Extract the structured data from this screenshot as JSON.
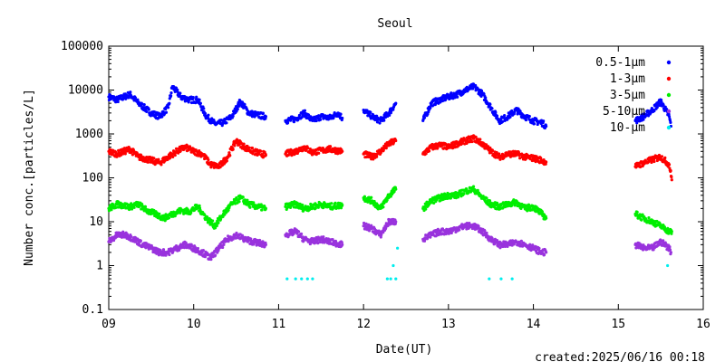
{
  "chart_data": {
    "type": "scatter",
    "title": "Seoul",
    "xlabel": "Date(UT)",
    "ylabel": "Number conc.[particles/L]",
    "yscale": "log",
    "ylim": [
      0.1,
      100000
    ],
    "xlim": [
      9,
      16
    ],
    "x_ticks": [
      "09",
      "10",
      "11",
      "12",
      "13",
      "14",
      "15",
      "16"
    ],
    "y_ticks": [
      "0.1",
      "1",
      "10",
      "100",
      "1000",
      "10000",
      "100000"
    ],
    "grid": false,
    "legend_position": "top-right",
    "footer": "created:2025/06/16 00:18",
    "series": [
      {
        "name": "0.5-1μm",
        "color": "#0000ff",
        "segments": [
          {
            "x": [
              9.0,
              9.1,
              9.25,
              9.35,
              9.5,
              9.6,
              9.7,
              9.75,
              9.85,
              9.95,
              10.05,
              10.15,
              10.25,
              10.35,
              10.45,
              10.55,
              10.65,
              10.75,
              10.85
            ],
            "y": [
              7000,
              6000,
              8000,
              5000,
              3000,
              2500,
              4000,
              12000,
              7000,
              6000,
              6000,
              2500,
              1700,
              1800,
              2500,
              5500,
              3000,
              2700,
              2500
            ]
          },
          {
            "x": [
              11.08,
              11.2,
              11.3,
              11.4,
              11.5,
              11.6,
              11.7,
              11.75
            ],
            "y": [
              2000,
              2200,
              3000,
              2000,
              2500,
              2300,
              3000,
              2300
            ]
          },
          {
            "x": [
              12.0,
              12.1,
              12.2,
              12.3,
              12.38
            ],
            "y": [
              3500,
              2500,
              2000,
              3000,
              5000
            ]
          },
          {
            "x": [
              12.7,
              12.8,
              12.9,
              13.0,
              13.1,
              13.2,
              13.3,
              13.4,
              13.5,
              13.6,
              13.7,
              13.8,
              13.9,
              14.0,
              14.1,
              14.15
            ],
            "y": [
              2000,
              5000,
              6000,
              7000,
              8000,
              10000,
              12000,
              8000,
              4000,
              2000,
              2500,
              3500,
              2500,
              2000,
              1800,
              1500
            ]
          },
          {
            "x": [
              15.2,
              15.3,
              15.4,
              15.5,
              15.6,
              15.62
            ],
            "y": [
              2000,
              2500,
              3500,
              5500,
              2500,
              1500
            ]
          }
        ]
      },
      {
        "name": "1-3μm",
        "color": "#ff0000",
        "segments": [
          {
            "x": [
              9.0,
              9.1,
              9.25,
              9.35,
              9.5,
              9.6,
              9.7,
              9.8,
              9.9,
              10.0,
              10.1,
              10.2,
              10.3,
              10.4,
              10.5,
              10.6,
              10.7,
              10.85
            ],
            "y": [
              400,
              350,
              450,
              300,
              250,
              220,
              300,
              400,
              500,
              400,
              350,
              200,
              180,
              300,
              700,
              500,
              400,
              330
            ]
          },
          {
            "x": [
              11.08,
              11.2,
              11.3,
              11.4,
              11.5,
              11.6,
              11.75
            ],
            "y": [
              350,
              400,
              500,
              380,
              420,
              450,
              400
            ]
          },
          {
            "x": [
              12.0,
              12.1,
              12.2,
              12.3,
              12.38
            ],
            "y": [
              350,
              300,
              400,
              600,
              700
            ]
          },
          {
            "x": [
              12.7,
              12.8,
              12.9,
              13.0,
              13.1,
              13.2,
              13.3,
              13.4,
              13.5,
              13.6,
              13.7,
              13.8,
              13.9,
              14.0,
              14.1,
              14.15
            ],
            "y": [
              350,
              500,
              550,
              500,
              600,
              700,
              800,
              600,
              400,
              300,
              350,
              350,
              300,
              280,
              250,
              230
            ]
          },
          {
            "x": [
              15.2,
              15.3,
              15.4,
              15.5,
              15.6,
              15.63
            ],
            "y": [
              180,
              220,
              260,
              300,
              200,
              90
            ]
          }
        ]
      },
      {
        "name": "3-5μm",
        "color": "#00ee00",
        "segments": [
          {
            "x": [
              9.0,
              9.1,
              9.25,
              9.35,
              9.45,
              9.55,
              9.65,
              9.75,
              9.85,
              9.95,
              10.05,
              10.15,
              10.25,
              10.35,
              10.45,
              10.55,
              10.65,
              10.75,
              10.85
            ],
            "y": [
              20,
              25,
              22,
              25,
              18,
              15,
              12,
              15,
              18,
              17,
              22,
              12,
              8,
              15,
              25,
              35,
              25,
              22,
              20
            ]
          },
          {
            "x": [
              11.08,
              11.2,
              11.3,
              11.4,
              11.5,
              11.6,
              11.75
            ],
            "y": [
              22,
              25,
              20,
              22,
              25,
              22,
              24
            ]
          },
          {
            "x": [
              12.0,
              12.1,
              12.2,
              12.3,
              12.38
            ],
            "y": [
              35,
              30,
              20,
              40,
              55
            ]
          },
          {
            "x": [
              12.7,
              12.8,
              12.9,
              13.0,
              13.1,
              13.2,
              13.3,
              13.4,
              13.5,
              13.6,
              13.7,
              13.8,
              13.9,
              14.0,
              14.1,
              14.15
            ],
            "y": [
              20,
              30,
              35,
              40,
              40,
              50,
              55,
              35,
              25,
              22,
              25,
              28,
              20,
              22,
              15,
              12
            ]
          },
          {
            "x": [
              15.2,
              15.3,
              15.4,
              15.5,
              15.6,
              15.63
            ],
            "y": [
              15,
              12,
              10,
              8,
              6,
              6
            ]
          }
        ]
      },
      {
        "name": "5-10μm",
        "color": "#9933dd",
        "segments": [
          {
            "x": [
              9.0,
              9.1,
              9.2,
              9.3,
              9.4,
              9.5,
              9.6,
              9.7,
              9.8,
              9.9,
              10.0,
              10.1,
              10.2,
              10.3,
              10.4,
              10.5,
              10.6,
              10.7,
              10.85
            ],
            "y": [
              3.5,
              5,
              5,
              4,
              3,
              2.5,
              2,
              2,
              2.5,
              3,
              2.5,
              2,
              1.5,
              2.5,
              4,
              5,
              4,
              3.5,
              3
            ]
          },
          {
            "x": [
              11.08,
              11.2,
              11.3,
              11.4,
              11.5,
              11.6,
              11.75
            ],
            "y": [
              5,
              6,
              4,
              3.5,
              4,
              3.5,
              3
            ]
          },
          {
            "x": [
              12.0,
              12.1,
              12.2,
              12.3,
              12.38
            ],
            "y": [
              8,
              7,
              5,
              10,
              10
            ]
          },
          {
            "x": [
              12.7,
              12.8,
              12.9,
              13.0,
              13.1,
              13.2,
              13.3,
              13.4,
              13.5,
              13.6,
              13.7,
              13.8,
              13.9,
              14.0,
              14.1,
              14.15
            ],
            "y": [
              4,
              5,
              6,
              6,
              7,
              8,
              8,
              6,
              4,
              3,
              3,
              3.5,
              3,
              2.5,
              2,
              2
            ]
          },
          {
            "x": [
              15.2,
              15.3,
              15.4,
              15.5,
              15.6,
              15.62
            ],
            "y": [
              3,
              2.5,
              2.5,
              3.5,
              2.5,
              2
            ]
          }
        ]
      },
      {
        "name": "10-μm",
        "color": "#00eeee",
        "segments": [
          {
            "x": [
              11.1,
              11.2,
              11.27,
              11.34,
              11.4
            ],
            "y": [
              0.5,
              0.5,
              0.5,
              0.5,
              0.5
            ]
          },
          {
            "x": [
              12.28,
              12.32,
              12.35,
              12.38
            ],
            "y": [
              0.5,
              0.5,
              1,
              0.5
            ]
          },
          {
            "x": [
              12.4
            ],
            "y": [
              2.5
            ]
          },
          {
            "x": [
              13.48,
              13.62,
              13.75
            ],
            "y": [
              0.5,
              0.5,
              0.5
            ]
          },
          {
            "x": [
              15.58
            ],
            "y": [
              1
            ]
          }
        ]
      }
    ]
  }
}
